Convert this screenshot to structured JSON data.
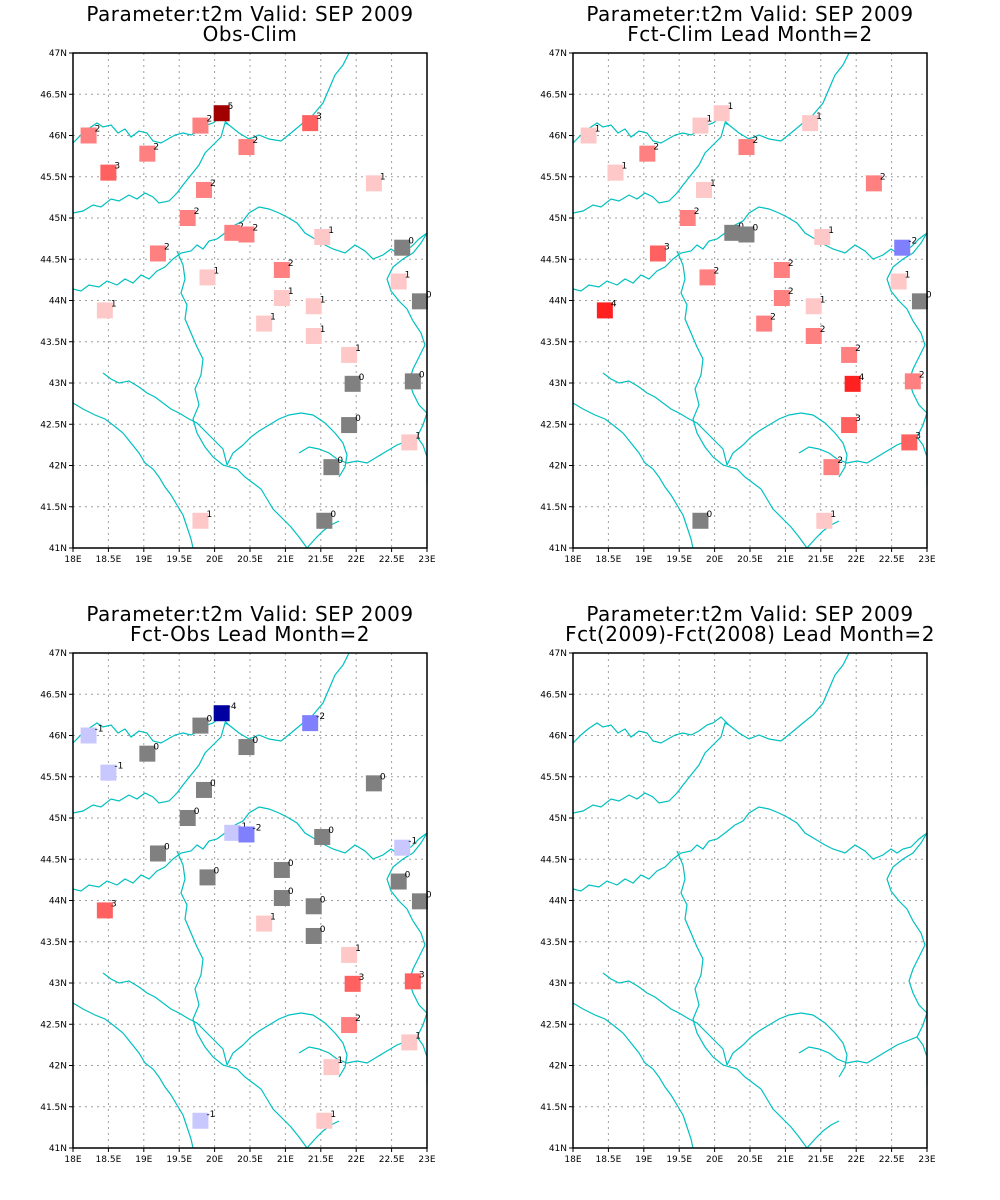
{
  "figure": {
    "colors": {
      "border": "#00c0c0",
      "frame": "#000000",
      "grid": "#a0a0a0",
      "zero": "#808080",
      "pos1": "#ffc8c8",
      "pos2": "#ff8080",
      "pos3": "#ff6060",
      "pos4": "#ff2020",
      "pos5": "#a00000",
      "neg1": "#c8c8ff",
      "neg2": "#8080ff",
      "neg3": "#6060ff",
      "neg4": "#0000a0"
    },
    "x_ticks": [
      "18E",
      "18.5E",
      "19E",
      "19.5E",
      "20E",
      "20.5E",
      "21E",
      "21.5E",
      "22E",
      "22.5E",
      "23E"
    ],
    "y_ticks": [
      "41N",
      "41.5N",
      "42N",
      "42.5N",
      "43N",
      "43.5N",
      "44N",
      "44.5N",
      "45N",
      "45.5N",
      "46N",
      "46.5N",
      "47N"
    ]
  },
  "chart_data": [
    {
      "type": "map",
      "title": "Parameter:t2m Valid: SEP 2009",
      "subtitle": "Obs-Clim",
      "xlim": [
        18,
        23
      ],
      "ylim": [
        41,
        47
      ],
      "points": [
        {
          "lon": 18.22,
          "lat": 46.0,
          "v": 2
        },
        {
          "lon": 18.5,
          "lat": 45.55,
          "v": 3
        },
        {
          "lon": 19.05,
          "lat": 45.78,
          "v": 2
        },
        {
          "lon": 19.8,
          "lat": 46.12,
          "v": 2
        },
        {
          "lon": 20.1,
          "lat": 46.27,
          "v": 5
        },
        {
          "lon": 21.35,
          "lat": 46.15,
          "v": 3
        },
        {
          "lon": 20.45,
          "lat": 45.86,
          "v": 2
        },
        {
          "lon": 19.85,
          "lat": 45.34,
          "v": 2
        },
        {
          "lon": 19.62,
          "lat": 45.0,
          "v": 2
        },
        {
          "lon": 20.25,
          "lat": 44.82,
          "v": 2
        },
        {
          "lon": 20.45,
          "lat": 44.8,
          "v": 2
        },
        {
          "lon": 19.2,
          "lat": 44.57,
          "v": 2
        },
        {
          "lon": 22.25,
          "lat": 45.42,
          "v": 1
        },
        {
          "lon": 21.52,
          "lat": 44.77,
          "v": 1
        },
        {
          "lon": 22.65,
          "lat": 44.64,
          "v": 0
        },
        {
          "lon": 19.9,
          "lat": 44.28,
          "v": 1
        },
        {
          "lon": 20.95,
          "lat": 44.37,
          "v": 2
        },
        {
          "lon": 22.6,
          "lat": 44.23,
          "v": 1
        },
        {
          "lon": 18.45,
          "lat": 43.88,
          "v": 1
        },
        {
          "lon": 20.95,
          "lat": 44.03,
          "v": 1
        },
        {
          "lon": 21.4,
          "lat": 43.93,
          "v": 1
        },
        {
          "lon": 22.9,
          "lat": 43.99,
          "v": 0
        },
        {
          "lon": 20.7,
          "lat": 43.72,
          "v": 1
        },
        {
          "lon": 21.4,
          "lat": 43.57,
          "v": 1
        },
        {
          "lon": 21.9,
          "lat": 43.34,
          "v": 1
        },
        {
          "lon": 21.95,
          "lat": 42.99,
          "v": 0
        },
        {
          "lon": 22.8,
          "lat": 43.02,
          "v": 0
        },
        {
          "lon": 21.9,
          "lat": 42.49,
          "v": 0
        },
        {
          "lon": 22.75,
          "lat": 42.28,
          "v": 1
        },
        {
          "lon": 21.65,
          "lat": 41.98,
          "v": 0
        },
        {
          "lon": 19.8,
          "lat": 41.33,
          "v": 1
        },
        {
          "lon": 21.55,
          "lat": 41.33,
          "v": 0
        }
      ]
    },
    {
      "type": "map",
      "title": "Parameter:t2m Valid: SEP 2009",
      "subtitle": "Fct-Clim Lead Month=2",
      "xlim": [
        18,
        23
      ],
      "ylim": [
        41,
        47
      ],
      "points": [
        {
          "lon": 18.22,
          "lat": 46.0,
          "v": 1
        },
        {
          "lon": 18.6,
          "lat": 45.55,
          "v": 1
        },
        {
          "lon": 19.05,
          "lat": 45.78,
          "v": 2
        },
        {
          "lon": 19.8,
          "lat": 46.12,
          "v": 1
        },
        {
          "lon": 20.1,
          "lat": 46.27,
          "v": 1
        },
        {
          "lon": 21.35,
          "lat": 46.15,
          "v": 1
        },
        {
          "lon": 20.45,
          "lat": 45.86,
          "v": 2
        },
        {
          "lon": 19.85,
          "lat": 45.34,
          "v": 1
        },
        {
          "lon": 19.62,
          "lat": 45.0,
          "v": 2
        },
        {
          "lon": 20.25,
          "lat": 44.82,
          "v": 0
        },
        {
          "lon": 20.45,
          "lat": 44.8,
          "v": 0
        },
        {
          "lon": 19.2,
          "lat": 44.57,
          "v": 3
        },
        {
          "lon": 22.25,
          "lat": 45.42,
          "v": 2
        },
        {
          "lon": 21.52,
          "lat": 44.77,
          "v": 1
        },
        {
          "lon": 22.65,
          "lat": 44.64,
          "v": -2
        },
        {
          "lon": 19.9,
          "lat": 44.28,
          "v": 2
        },
        {
          "lon": 20.95,
          "lat": 44.37,
          "v": 2
        },
        {
          "lon": 22.6,
          "lat": 44.23,
          "v": 1
        },
        {
          "lon": 18.45,
          "lat": 43.88,
          "v": 4
        },
        {
          "lon": 20.95,
          "lat": 44.03,
          "v": 2
        },
        {
          "lon": 21.4,
          "lat": 43.93,
          "v": 1
        },
        {
          "lon": 22.9,
          "lat": 43.99,
          "v": 0
        },
        {
          "lon": 20.7,
          "lat": 43.72,
          "v": 2
        },
        {
          "lon": 21.4,
          "lat": 43.57,
          "v": 2
        },
        {
          "lon": 21.9,
          "lat": 43.34,
          "v": 2
        },
        {
          "lon": 21.95,
          "lat": 42.99,
          "v": 4
        },
        {
          "lon": 22.8,
          "lat": 43.02,
          "v": 2
        },
        {
          "lon": 21.9,
          "lat": 42.49,
          "v": 3
        },
        {
          "lon": 22.75,
          "lat": 42.28,
          "v": 3
        },
        {
          "lon": 21.65,
          "lat": 41.98,
          "v": 2
        },
        {
          "lon": 19.8,
          "lat": 41.33,
          "v": 0
        },
        {
          "lon": 21.55,
          "lat": 41.33,
          "v": 1
        }
      ]
    },
    {
      "type": "map",
      "title": "Parameter:t2m Valid: SEP 2009",
      "subtitle": "Fct-Obs Lead Month=2",
      "xlim": [
        18,
        23
      ],
      "ylim": [
        41,
        47
      ],
      "points": [
        {
          "lon": 18.22,
          "lat": 46.0,
          "v": -1
        },
        {
          "lon": 18.5,
          "lat": 45.55,
          "v": -1
        },
        {
          "lon": 19.05,
          "lat": 45.78,
          "v": 0
        },
        {
          "lon": 19.8,
          "lat": 46.12,
          "v": 0
        },
        {
          "lon": 20.1,
          "lat": 46.27,
          "v": -4
        },
        {
          "lon": 21.35,
          "lat": 46.15,
          "v": -2
        },
        {
          "lon": 20.45,
          "lat": 45.86,
          "v": 0
        },
        {
          "lon": 19.85,
          "lat": 45.34,
          "v": 0
        },
        {
          "lon": 19.62,
          "lat": 45.0,
          "v": 0
        },
        {
          "lon": 20.25,
          "lat": 44.82,
          "v": -1
        },
        {
          "lon": 20.45,
          "lat": 44.8,
          "v": -2
        },
        {
          "lon": 19.2,
          "lat": 44.57,
          "v": 0
        },
        {
          "lon": 22.25,
          "lat": 45.42,
          "v": 0
        },
        {
          "lon": 21.52,
          "lat": 44.77,
          "v": 0
        },
        {
          "lon": 22.65,
          "lat": 44.64,
          "v": -1
        },
        {
          "lon": 19.9,
          "lat": 44.28,
          "v": 0
        },
        {
          "lon": 20.95,
          "lat": 44.37,
          "v": 0
        },
        {
          "lon": 22.6,
          "lat": 44.23,
          "v": 0
        },
        {
          "lon": 18.45,
          "lat": 43.88,
          "v": 3
        },
        {
          "lon": 20.95,
          "lat": 44.03,
          "v": 0
        },
        {
          "lon": 21.4,
          "lat": 43.93,
          "v": 0
        },
        {
          "lon": 22.9,
          "lat": 43.99,
          "v": 0
        },
        {
          "lon": 20.7,
          "lat": 43.72,
          "v": 1
        },
        {
          "lon": 21.4,
          "lat": 43.57,
          "v": 0
        },
        {
          "lon": 21.9,
          "lat": 43.34,
          "v": 1
        },
        {
          "lon": 21.95,
          "lat": 42.99,
          "v": 3
        },
        {
          "lon": 22.8,
          "lat": 43.02,
          "v": 3
        },
        {
          "lon": 21.9,
          "lat": 42.49,
          "v": 2
        },
        {
          "lon": 22.75,
          "lat": 42.28,
          "v": 1
        },
        {
          "lon": 21.65,
          "lat": 41.98,
          "v": 1
        },
        {
          "lon": 19.8,
          "lat": 41.33,
          "v": -1
        },
        {
          "lon": 21.55,
          "lat": 41.33,
          "v": 1
        }
      ]
    },
    {
      "type": "map",
      "title": "Parameter:t2m Valid: SEP 2009",
      "subtitle": "Fct(2009)-Fct(2008) Lead Month=2",
      "xlim": [
        18,
        23
      ],
      "ylim": [
        41,
        47
      ],
      "points": []
    }
  ]
}
